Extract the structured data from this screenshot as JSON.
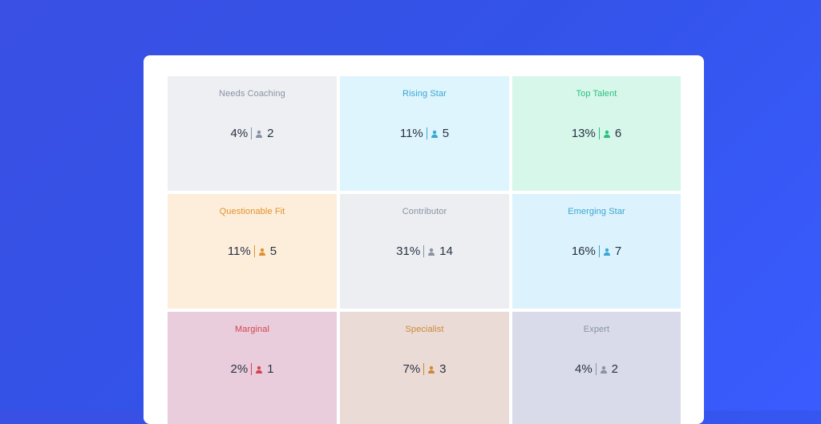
{
  "grid": {
    "cells": [
      {
        "title": "Needs Coaching",
        "pct": "4%",
        "count": "2",
        "bg": "#edeff2",
        "title_color": "#8a93a2",
        "accent": "#8a93a2"
      },
      {
        "title": "Rising Star",
        "pct": "11%",
        "count": "5",
        "bg": "#dff5fd",
        "title_color": "#3aa6d4",
        "accent": "#3aa6d4"
      },
      {
        "title": "Top Talent",
        "pct": "13%",
        "count": "6",
        "bg": "#d6f7ea",
        "title_color": "#2bbf7f",
        "accent": "#2bbf7f"
      },
      {
        "title": "Questionable Fit",
        "pct": "11%",
        "count": "5",
        "bg": "#fdeedb",
        "title_color": "#e0912f",
        "accent": "#e0912f"
      },
      {
        "title": "Contributor",
        "pct": "31%",
        "count": "14",
        "bg": "#eceef2",
        "title_color": "#8a93a2",
        "accent": "#8a93a2"
      },
      {
        "title": "Emerging Star",
        "pct": "16%",
        "count": "7",
        "bg": "#dcf2fc",
        "title_color": "#3aa6d4",
        "accent": "#3aa6d4"
      },
      {
        "title": "Marginal",
        "pct": "2%",
        "count": "1",
        "bg": "#e9cddc",
        "title_color": "#d2454f",
        "accent": "#d2454f"
      },
      {
        "title": "Specialist",
        "pct": "7%",
        "count": "3",
        "bg": "#ebdbd6",
        "title_color": "#cc8a35",
        "accent": "#cc8a35"
      },
      {
        "title": "Expert",
        "pct": "4%",
        "count": "2",
        "bg": "#d9dbea",
        "title_color": "#8a93a2",
        "accent": "#8a93a2"
      }
    ]
  }
}
